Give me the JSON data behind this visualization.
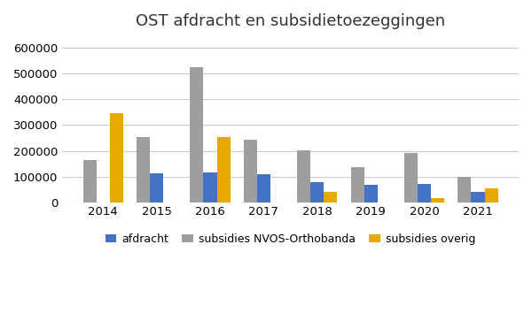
{
  "title": "OST afdracht en subsidietoezeggingen",
  "years": [
    "2014",
    "2015",
    "2016",
    "2017",
    "2018",
    "2019",
    "2020",
    "2021"
  ],
  "afdracht": [
    0,
    112000,
    115000,
    108000,
    78000,
    68000,
    70000,
    38000
  ],
  "subsidies_nvos": [
    165000,
    252000,
    527000,
    242000,
    203000,
    135000,
    190000,
    97000
  ],
  "subsidies_overig": [
    345000,
    0,
    255000,
    0,
    38000,
    0,
    15000,
    55000
  ],
  "color_afdracht": "#4472c4",
  "color_nvos": "#9e9e9e",
  "color_overig": "#e8a800",
  "ylim": [
    0,
    640000
  ],
  "yticks": [
    0,
    100000,
    200000,
    300000,
    400000,
    500000,
    600000
  ],
  "legend_labels": [
    "afdracht",
    "subsidies NVOS-Orthobanda",
    "subsidies overig"
  ],
  "background_color": "#ffffff",
  "grid_color": "#cccccc",
  "bar_width": 0.25
}
